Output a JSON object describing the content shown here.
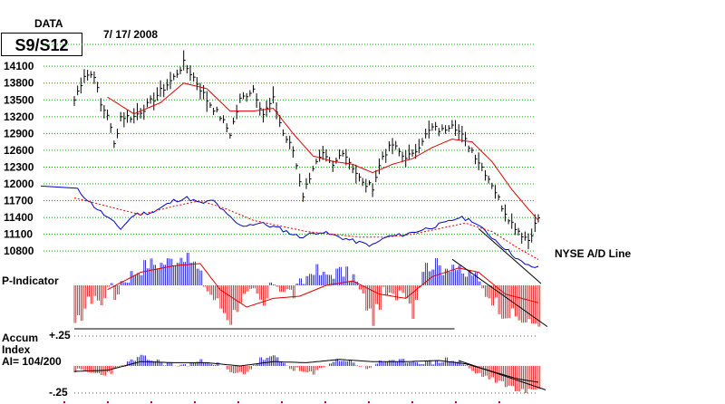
{
  "header": {
    "data_label": "DATA",
    "date_range": "7/ 17/ 2008",
    "signal_box": "S9/S12"
  },
  "labels": {
    "nyse_ad": "NYSE A/D Line",
    "p_indicator": "P-Indicator",
    "accum_1": "Accum",
    "accum_2": "Index",
    "accum_3": "AI= 104/200",
    "plus25": "+.25",
    "minus25": "-.25"
  },
  "colors": {
    "price": "#000000",
    "ma": "#e00000",
    "ad_line": "#0000cc",
    "positive": "#0000cc",
    "negative": "#e00000",
    "grid": "#00aa00"
  },
  "chart_data": {
    "type": "line",
    "x_range": [
      0,
      140
    ],
    "price_ylim": [
      10900,
      14200
    ],
    "price_ticks": [
      14100,
      13800,
      13500,
      13200,
      12900,
      12600,
      12300,
      12000,
      11700,
      11400,
      11100,
      10800
    ],
    "price_tick_labels": [
      "14100",
      "13800",
      "13500",
      "13200",
      "12900",
      "12600",
      "12300",
      "12000",
      "11700",
      "11400",
      "11100",
      "10800"
    ],
    "price_anchors": [
      [
        0,
        13500
      ],
      [
        3,
        13950
      ],
      [
        6,
        13950
      ],
      [
        8,
        13400
      ],
      [
        10,
        13250
      ],
      [
        12,
        12700
      ],
      [
        14,
        13200
      ],
      [
        18,
        13200
      ],
      [
        22,
        13400
      ],
      [
        26,
        13650
      ],
      [
        30,
        13900
      ],
      [
        33,
        14150
      ],
      [
        36,
        13900
      ],
      [
        40,
        13500
      ],
      [
        44,
        13200
      ],
      [
        47,
        12900
      ],
      [
        50,
        13500
      ],
      [
        54,
        13700
      ],
      [
        57,
        13250
      ],
      [
        60,
        13500
      ],
      [
        63,
        12900
      ],
      [
        66,
        12600
      ],
      [
        69,
        11800
      ],
      [
        72,
        12300
      ],
      [
        75,
        12500
      ],
      [
        78,
        12300
      ],
      [
        81,
        12600
      ],
      [
        84,
        12300
      ],
      [
        87,
        12000
      ],
      [
        90,
        11950
      ],
      [
        93,
        12500
      ],
      [
        96,
        12700
      ],
      [
        99,
        12500
      ],
      [
        102,
        12500
      ],
      [
        105,
        12800
      ],
      [
        108,
        13000
      ],
      [
        111,
        12950
      ],
      [
        114,
        13100
      ],
      [
        117,
        12850
      ],
      [
        120,
        12600
      ],
      [
        123,
        12300
      ],
      [
        126,
        12000
      ],
      [
        129,
        11600
      ],
      [
        132,
        11300
      ],
      [
        135,
        11100
      ],
      [
        137,
        11000
      ],
      [
        140,
        11400
      ]
    ],
    "ma_anchors": [
      [
        10,
        13550
      ],
      [
        18,
        13250
      ],
      [
        26,
        13450
      ],
      [
        33,
        13800
      ],
      [
        40,
        13700
      ],
      [
        47,
        13300
      ],
      [
        54,
        13300
      ],
      [
        60,
        13350
      ],
      [
        66,
        12900
      ],
      [
        72,
        12500
      ],
      [
        78,
        12400
      ],
      [
        84,
        12350
      ],
      [
        90,
        12200
      ],
      [
        96,
        12350
      ],
      [
        102,
        12450
      ],
      [
        108,
        12650
      ],
      [
        114,
        12800
      ],
      [
        120,
        12750
      ],
      [
        126,
        12400
      ],
      [
        132,
        11900
      ],
      [
        137,
        11550
      ],
      [
        140,
        11350
      ]
    ],
    "ad_anchors": [
      [
        0,
        11950
      ],
      [
        6,
        11600
      ],
      [
        10,
        11400
      ],
      [
        14,
        11200
      ],
      [
        18,
        11450
      ],
      [
        24,
        11500
      ],
      [
        30,
        11700
      ],
      [
        34,
        11750
      ],
      [
        38,
        11650
      ],
      [
        42,
        11700
      ],
      [
        46,
        11450
      ],
      [
        50,
        11250
      ],
      [
        56,
        11300
      ],
      [
        62,
        11200
      ],
      [
        68,
        11050
      ],
      [
        74,
        11150
      ],
      [
        80,
        11050
      ],
      [
        86,
        10950
      ],
      [
        90,
        10900
      ],
      [
        94,
        11050
      ],
      [
        100,
        11100
      ],
      [
        106,
        11200
      ],
      [
        112,
        11300
      ],
      [
        116,
        11400
      ],
      [
        120,
        11350
      ],
      [
        124,
        11150
      ],
      [
        128,
        10950
      ],
      [
        132,
        10750
      ],
      [
        136,
        10550
      ],
      [
        140,
        10500
      ]
    ],
    "ad_ma_anchors": [
      [
        0,
        11750
      ],
      [
        10,
        11600
      ],
      [
        20,
        11450
      ],
      [
        30,
        11600
      ],
      [
        38,
        11700
      ],
      [
        46,
        11550
      ],
      [
        54,
        11350
      ],
      [
        62,
        11250
      ],
      [
        70,
        11150
      ],
      [
        78,
        11100
      ],
      [
        86,
        11050
      ],
      [
        94,
        11050
      ],
      [
        102,
        11100
      ],
      [
        110,
        11200
      ],
      [
        118,
        11300
      ],
      [
        126,
        11150
      ],
      [
        134,
        10850
      ],
      [
        140,
        10650
      ]
    ],
    "p_indicator": {
      "ylim": [
        -1,
        1
      ],
      "anchors": [
        [
          0,
          -1.0
        ],
        [
          3,
          -0.5
        ],
        [
          6,
          -0.2
        ],
        [
          8,
          -0.5
        ],
        [
          10,
          0.1
        ],
        [
          12,
          -0.3
        ],
        [
          14,
          0.1
        ],
        [
          18,
          0.3
        ],
        [
          22,
          0.5
        ],
        [
          26,
          0.5
        ],
        [
          30,
          0.6
        ],
        [
          33,
          0.7
        ],
        [
          36,
          0.5
        ],
        [
          40,
          -0.1
        ],
        [
          44,
          -0.5
        ],
        [
          47,
          -0.8
        ],
        [
          50,
          -0.3
        ],
        [
          54,
          -0.2
        ],
        [
          57,
          -0.5
        ],
        [
          60,
          0.1
        ],
        [
          63,
          -0.1
        ],
        [
          66,
          -0.2
        ],
        [
          69,
          0.1
        ],
        [
          72,
          0.4
        ],
        [
          75,
          0.2
        ],
        [
          78,
          0.3
        ],
        [
          81,
          0.3
        ],
        [
          84,
          0.2
        ],
        [
          87,
          -0.3
        ],
        [
          90,
          -0.8
        ],
        [
          93,
          -0.2
        ],
        [
          96,
          -0.3
        ],
        [
          99,
          0.0
        ],
        [
          102,
          -0.6
        ],
        [
          105,
          0.4
        ],
        [
          108,
          0.5
        ],
        [
          111,
          0.4
        ],
        [
          114,
          0.5
        ],
        [
          117,
          0.2
        ],
        [
          120,
          0.3
        ],
        [
          123,
          -0.1
        ],
        [
          126,
          -0.3
        ],
        [
          129,
          -0.6
        ],
        [
          132,
          -0.7
        ],
        [
          135,
          -0.8
        ],
        [
          137,
          -0.9
        ],
        [
          140,
          -0.8
        ]
      ],
      "ma_anchors": [
        [
          10,
          -0.1
        ],
        [
          20,
          0.3
        ],
        [
          30,
          0.45
        ],
        [
          38,
          0.5
        ],
        [
          44,
          -0.1
        ],
        [
          52,
          -0.5
        ],
        [
          60,
          -0.3
        ],
        [
          68,
          -0.25
        ],
        [
          76,
          0.0
        ],
        [
          84,
          0.1
        ],
        [
          92,
          -0.2
        ],
        [
          100,
          -0.3
        ],
        [
          108,
          0.2
        ],
        [
          116,
          0.4
        ],
        [
          122,
          0.3
        ],
        [
          130,
          -0.2
        ],
        [
          140,
          -0.4
        ]
      ],
      "trend_lines": [
        [
          [
            0,
            -1.0
          ],
          [
            112,
            -1.0
          ]
        ],
        [
          [
            114,
            0.6
          ],
          [
            140,
            -0.95
          ]
        ]
      ]
    },
    "accum_index": {
      "ylim": [
        -0.25,
        0.25
      ],
      "tick_labels": [
        "+.25",
        "-.25"
      ],
      "anchors": [
        [
          0,
          -0.04
        ],
        [
          4,
          -0.06
        ],
        [
          8,
          -0.08
        ],
        [
          12,
          -0.04
        ],
        [
          16,
          0.03
        ],
        [
          20,
          0.08
        ],
        [
          24,
          0.05
        ],
        [
          28,
          0.02
        ],
        [
          32,
          0.0
        ],
        [
          36,
          0.03
        ],
        [
          40,
          0.05
        ],
        [
          44,
          0.0
        ],
        [
          48,
          -0.08
        ],
        [
          52,
          -0.05
        ],
        [
          56,
          0.06
        ],
        [
          60,
          0.08
        ],
        [
          64,
          0.0
        ],
        [
          68,
          -0.05
        ],
        [
          72,
          -0.08
        ],
        [
          76,
          0.02
        ],
        [
          80,
          0.06
        ],
        [
          84,
          0.04
        ],
        [
          88,
          -0.04
        ],
        [
          92,
          0.05
        ],
        [
          96,
          0.03
        ],
        [
          100,
          0.05
        ],
        [
          104,
          0.04
        ],
        [
          108,
          0.03
        ],
        [
          112,
          0.06
        ],
        [
          116,
          0.04
        ],
        [
          120,
          -0.05
        ],
        [
          124,
          -0.1
        ],
        [
          128,
          -0.15
        ],
        [
          132,
          -0.2
        ],
        [
          136,
          -0.24
        ],
        [
          140,
          -0.2
        ]
      ],
      "ma_anchors": [
        [
          0,
          -0.05
        ],
        [
          10,
          -0.04
        ],
        [
          20,
          0.04
        ],
        [
          30,
          0.03
        ],
        [
          40,
          0.03
        ],
        [
          50,
          0.0
        ],
        [
          60,
          0.04
        ],
        [
          70,
          0.03
        ],
        [
          80,
          0.06
        ],
        [
          90,
          0.04
        ],
        [
          100,
          0.04
        ],
        [
          110,
          0.05
        ],
        [
          118,
          0.02
        ],
        [
          126,
          -0.05
        ],
        [
          134,
          -0.12
        ],
        [
          140,
          -0.15
        ]
      ],
      "trend_lines": [
        [
          [
            116,
            0.05
          ],
          [
            140,
            -0.22
          ]
        ]
      ]
    }
  }
}
